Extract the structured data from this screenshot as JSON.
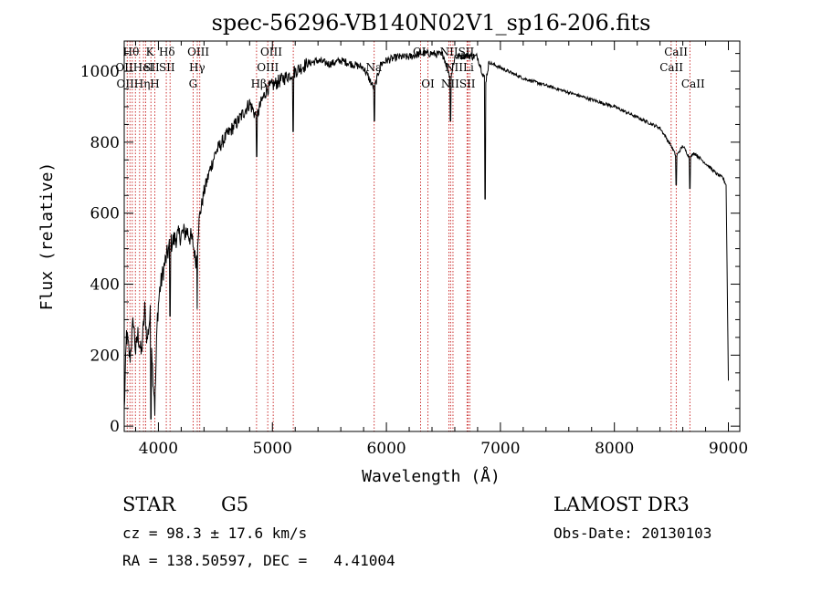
{
  "chart_data": {
    "type": "line",
    "title": "spec-56296-VB140N02V1_sp16-206.fits",
    "xlabel": "Wavelength (Å)",
    "ylabel": "Flux (relative)",
    "xlim": [
      3700,
      9100
    ],
    "ylim": [
      -15,
      1085
    ],
    "x_ticks": [
      4000,
      5000,
      6000,
      7000,
      8000,
      9000
    ],
    "y_ticks": [
      0,
      200,
      400,
      600,
      800,
      1000
    ],
    "grid": false,
    "line_color": "#000000",
    "marker_color": "#c00000",
    "continuum": [
      [
        3700,
        40
      ],
      [
        3720,
        260
      ],
      [
        3750,
        190
      ],
      [
        3780,
        300
      ],
      [
        3800,
        210
      ],
      [
        3820,
        260
      ],
      [
        3850,
        200
      ],
      [
        3880,
        330
      ],
      [
        3900,
        240
      ],
      [
        3930,
        320
      ],
      [
        3950,
        150
      ],
      [
        3970,
        60
      ],
      [
        3990,
        300
      ],
      [
        4010,
        380
      ],
      [
        4050,
        450
      ],
      [
        4100,
        510
      ],
      [
        4150,
        530
      ],
      [
        4200,
        540
      ],
      [
        4250,
        550
      ],
      [
        4300,
        520
      ],
      [
        4330,
        460
      ],
      [
        4360,
        590
      ],
      [
        4400,
        660
      ],
      [
        4450,
        720
      ],
      [
        4500,
        770
      ],
      [
        4600,
        820
      ],
      [
        4700,
        860
      ],
      [
        4800,
        910
      ],
      [
        4861,
        870
      ],
      [
        4900,
        910
      ],
      [
        4950,
        950
      ],
      [
        5000,
        960
      ],
      [
        5100,
        980
      ],
      [
        5200,
        1000
      ],
      [
        5300,
        1020
      ],
      [
        5400,
        1030
      ],
      [
        5500,
        1020
      ],
      [
        5600,
        1030
      ],
      [
        5700,
        1020
      ],
      [
        5800,
        1010
      ],
      [
        5893,
        950
      ],
      [
        5950,
        1020
      ],
      [
        6000,
        1030
      ],
      [
        6100,
        1040
      ],
      [
        6200,
        1040
      ],
      [
        6300,
        1050
      ],
      [
        6400,
        1050
      ],
      [
        6500,
        1045
      ],
      [
        6563,
        980
      ],
      [
        6600,
        1040
      ],
      [
        6700,
        1045
      ],
      [
        6800,
        1040
      ],
      [
        6870,
        970
      ],
      [
        6900,
        1025
      ],
      [
        7000,
        1010
      ],
      [
        7200,
        980
      ],
      [
        7400,
        960
      ],
      [
        7600,
        940
      ],
      [
        7800,
        920
      ],
      [
        8000,
        900
      ],
      [
        8200,
        870
      ],
      [
        8400,
        840
      ],
      [
        8498,
        790
      ],
      [
        8542,
        760
      ],
      [
        8600,
        790
      ],
      [
        8662,
        755
      ],
      [
        8700,
        770
      ],
      [
        8800,
        740
      ],
      [
        8900,
        710
      ],
      [
        8950,
        700
      ],
      [
        8980,
        680
      ],
      [
        9000,
        130
      ]
    ],
    "dips": [
      [
        3934,
        20
      ],
      [
        3968,
        30
      ],
      [
        4101,
        310
      ],
      [
        4340,
        330
      ],
      [
        4861,
        760
      ],
      [
        5183,
        830
      ],
      [
        5893,
        860
      ],
      [
        6563,
        860
      ],
      [
        6867,
        640
      ],
      [
        8542,
        680
      ],
      [
        8662,
        670
      ]
    ],
    "line_markers": [
      {
        "x": 3726,
        "label": "OII"
      },
      {
        "x": 3750,
        "label": "Hθ"
      },
      {
        "x": 3771,
        "label": "OIIHe"
      },
      {
        "x": 3798,
        "label": "Hη"
      },
      {
        "x": 3835,
        "label": "Hη"
      },
      {
        "x": 3869,
        "label": "He"
      },
      {
        "x": 3889,
        "label": "He"
      },
      {
        "x": 3934,
        "label": "K"
      },
      {
        "x": 3968,
        "label": "H"
      },
      {
        "x": 4069,
        "label": "SII"
      },
      {
        "x": 4102,
        "label": "Hδ"
      },
      {
        "x": 4304,
        "label": "G"
      },
      {
        "x": 4341,
        "label": "Hγ"
      },
      {
        "x": 4363,
        "label": "OIII"
      },
      {
        "x": 4861,
        "label": "Hβ"
      },
      {
        "x": 4959,
        "label": "OIII"
      },
      {
        "x": 5007,
        "label": "OIII"
      },
      {
        "x": 5183,
        "label": "Mg"
      },
      {
        "x": 5893,
        "label": "Na"
      },
      {
        "x": 6300,
        "label": "OI"
      },
      {
        "x": 6364,
        "label": "OI"
      },
      {
        "x": 6548,
        "label": "NII"
      },
      {
        "x": 6563,
        "label": "Hα"
      },
      {
        "x": 6584,
        "label": "NII"
      },
      {
        "x": 6707,
        "label": "Li"
      },
      {
        "x": 6717,
        "label": "SII"
      },
      {
        "x": 6731,
        "label": "SII"
      },
      {
        "x": 8498,
        "label": "CaII"
      },
      {
        "x": 8542,
        "label": "CaII"
      },
      {
        "x": 8662,
        "label": "CaII"
      }
    ],
    "marker_labels": [
      {
        "text": "Hθ",
        "x": 3760,
        "row": 1
      },
      {
        "text": "OIIHeI",
        "x": 3790,
        "row": 2
      },
      {
        "text": "OIIHη",
        "x": 3780,
        "row": 3
      },
      {
        "text": "K",
        "x": 3925,
        "row": 1
      },
      {
        "text": "SII",
        "x": 3940,
        "row": 2
      },
      {
        "text": "H",
        "x": 3968,
        "row": 3
      },
      {
        "text": "Hδ",
        "x": 4075,
        "row": 1
      },
      {
        "text": "SII",
        "x": 4075,
        "row": 2
      },
      {
        "text": "OIII",
        "x": 4350,
        "row": 1
      },
      {
        "text": "Hγ",
        "x": 4340,
        "row": 2
      },
      {
        "text": "G",
        "x": 4304,
        "row": 3
      },
      {
        "text": "OIII",
        "x": 4990,
        "row": 1
      },
      {
        "text": "OIII",
        "x": 4960,
        "row": 2
      },
      {
        "text": "Hβ",
        "x": 4880,
        "row": 3
      },
      {
        "text": "Na",
        "x": 5890,
        "row": 2
      },
      {
        "text": "OI",
        "x": 6290,
        "row": 1
      },
      {
        "text": "OI",
        "x": 6364,
        "row": 3
      },
      {
        "text": "NIISII",
        "x": 6620,
        "row": 1
      },
      {
        "text": "NIILi",
        "x": 6640,
        "row": 2
      },
      {
        "text": "NIISII",
        "x": 6630,
        "row": 3
      },
      {
        "text": "CaII",
        "x": 8540,
        "row": 1
      },
      {
        "text": "CaII",
        "x": 8500,
        "row": 2
      },
      {
        "text": "CaII",
        "x": 8690,
        "row": 3
      }
    ]
  },
  "info": {
    "object_class": "STAR",
    "subclass": "G5",
    "survey": "LAMOST DR3",
    "cz": "cz = 98.3 ± 17.6 km/s",
    "obs_date": "Obs-Date: 20130103",
    "coords": "RA = 138.50597, DEC =   4.41004"
  }
}
